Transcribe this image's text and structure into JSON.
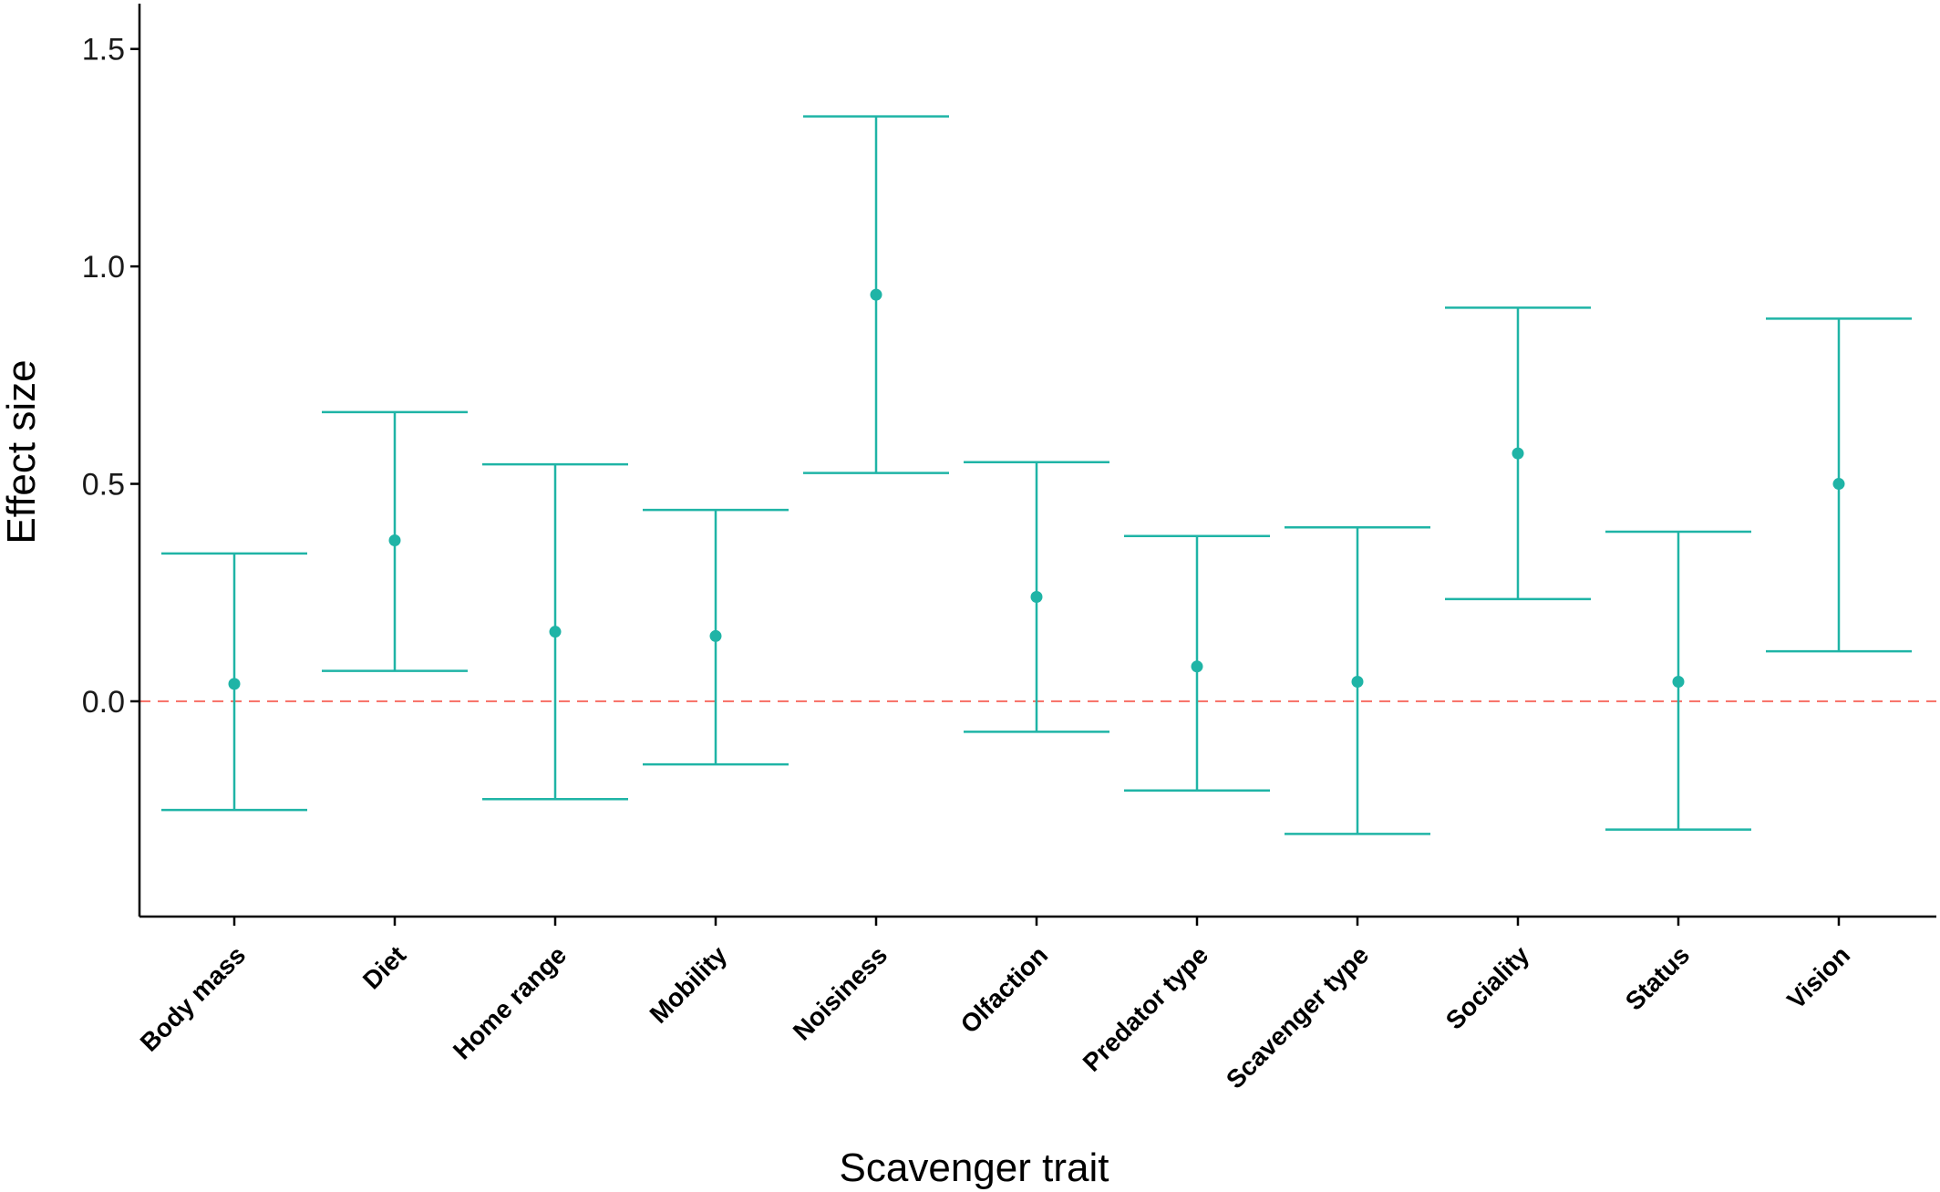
{
  "chart_data": {
    "type": "errorbar",
    "xlabel": "Scavenger trait",
    "ylabel": "Effect size",
    "ylim": [
      -0.495,
      1.6
    ],
    "yticks": [
      0.0,
      0.5,
      1.0,
      1.5
    ],
    "ytick_labels": [
      "0.0",
      "0.5",
      "1.0",
      "1.5"
    ],
    "reference_line": 0.0,
    "categories": [
      "Body mass",
      "Diet",
      "Home range",
      "Mobility",
      "Noisiness",
      "Olfaction",
      "Predator type",
      "Scavenger type",
      "Sociality",
      "Status",
      "Vision"
    ],
    "estimate": [
      0.04,
      0.37,
      0.16,
      0.15,
      0.935,
      0.24,
      0.08,
      0.045,
      0.57,
      0.045,
      0.5
    ],
    "lower": [
      -0.25,
      0.07,
      -0.225,
      -0.145,
      0.525,
      -0.07,
      -0.205,
      -0.305,
      0.235,
      -0.295,
      0.115
    ],
    "upper": [
      0.34,
      0.665,
      0.545,
      0.44,
      1.345,
      0.55,
      0.38,
      0.4,
      0.905,
      0.39,
      0.88
    ],
    "grid": false,
    "colors": {
      "series": "#1fb4a6",
      "reference": "#f8766d",
      "axis": "#000000"
    }
  }
}
